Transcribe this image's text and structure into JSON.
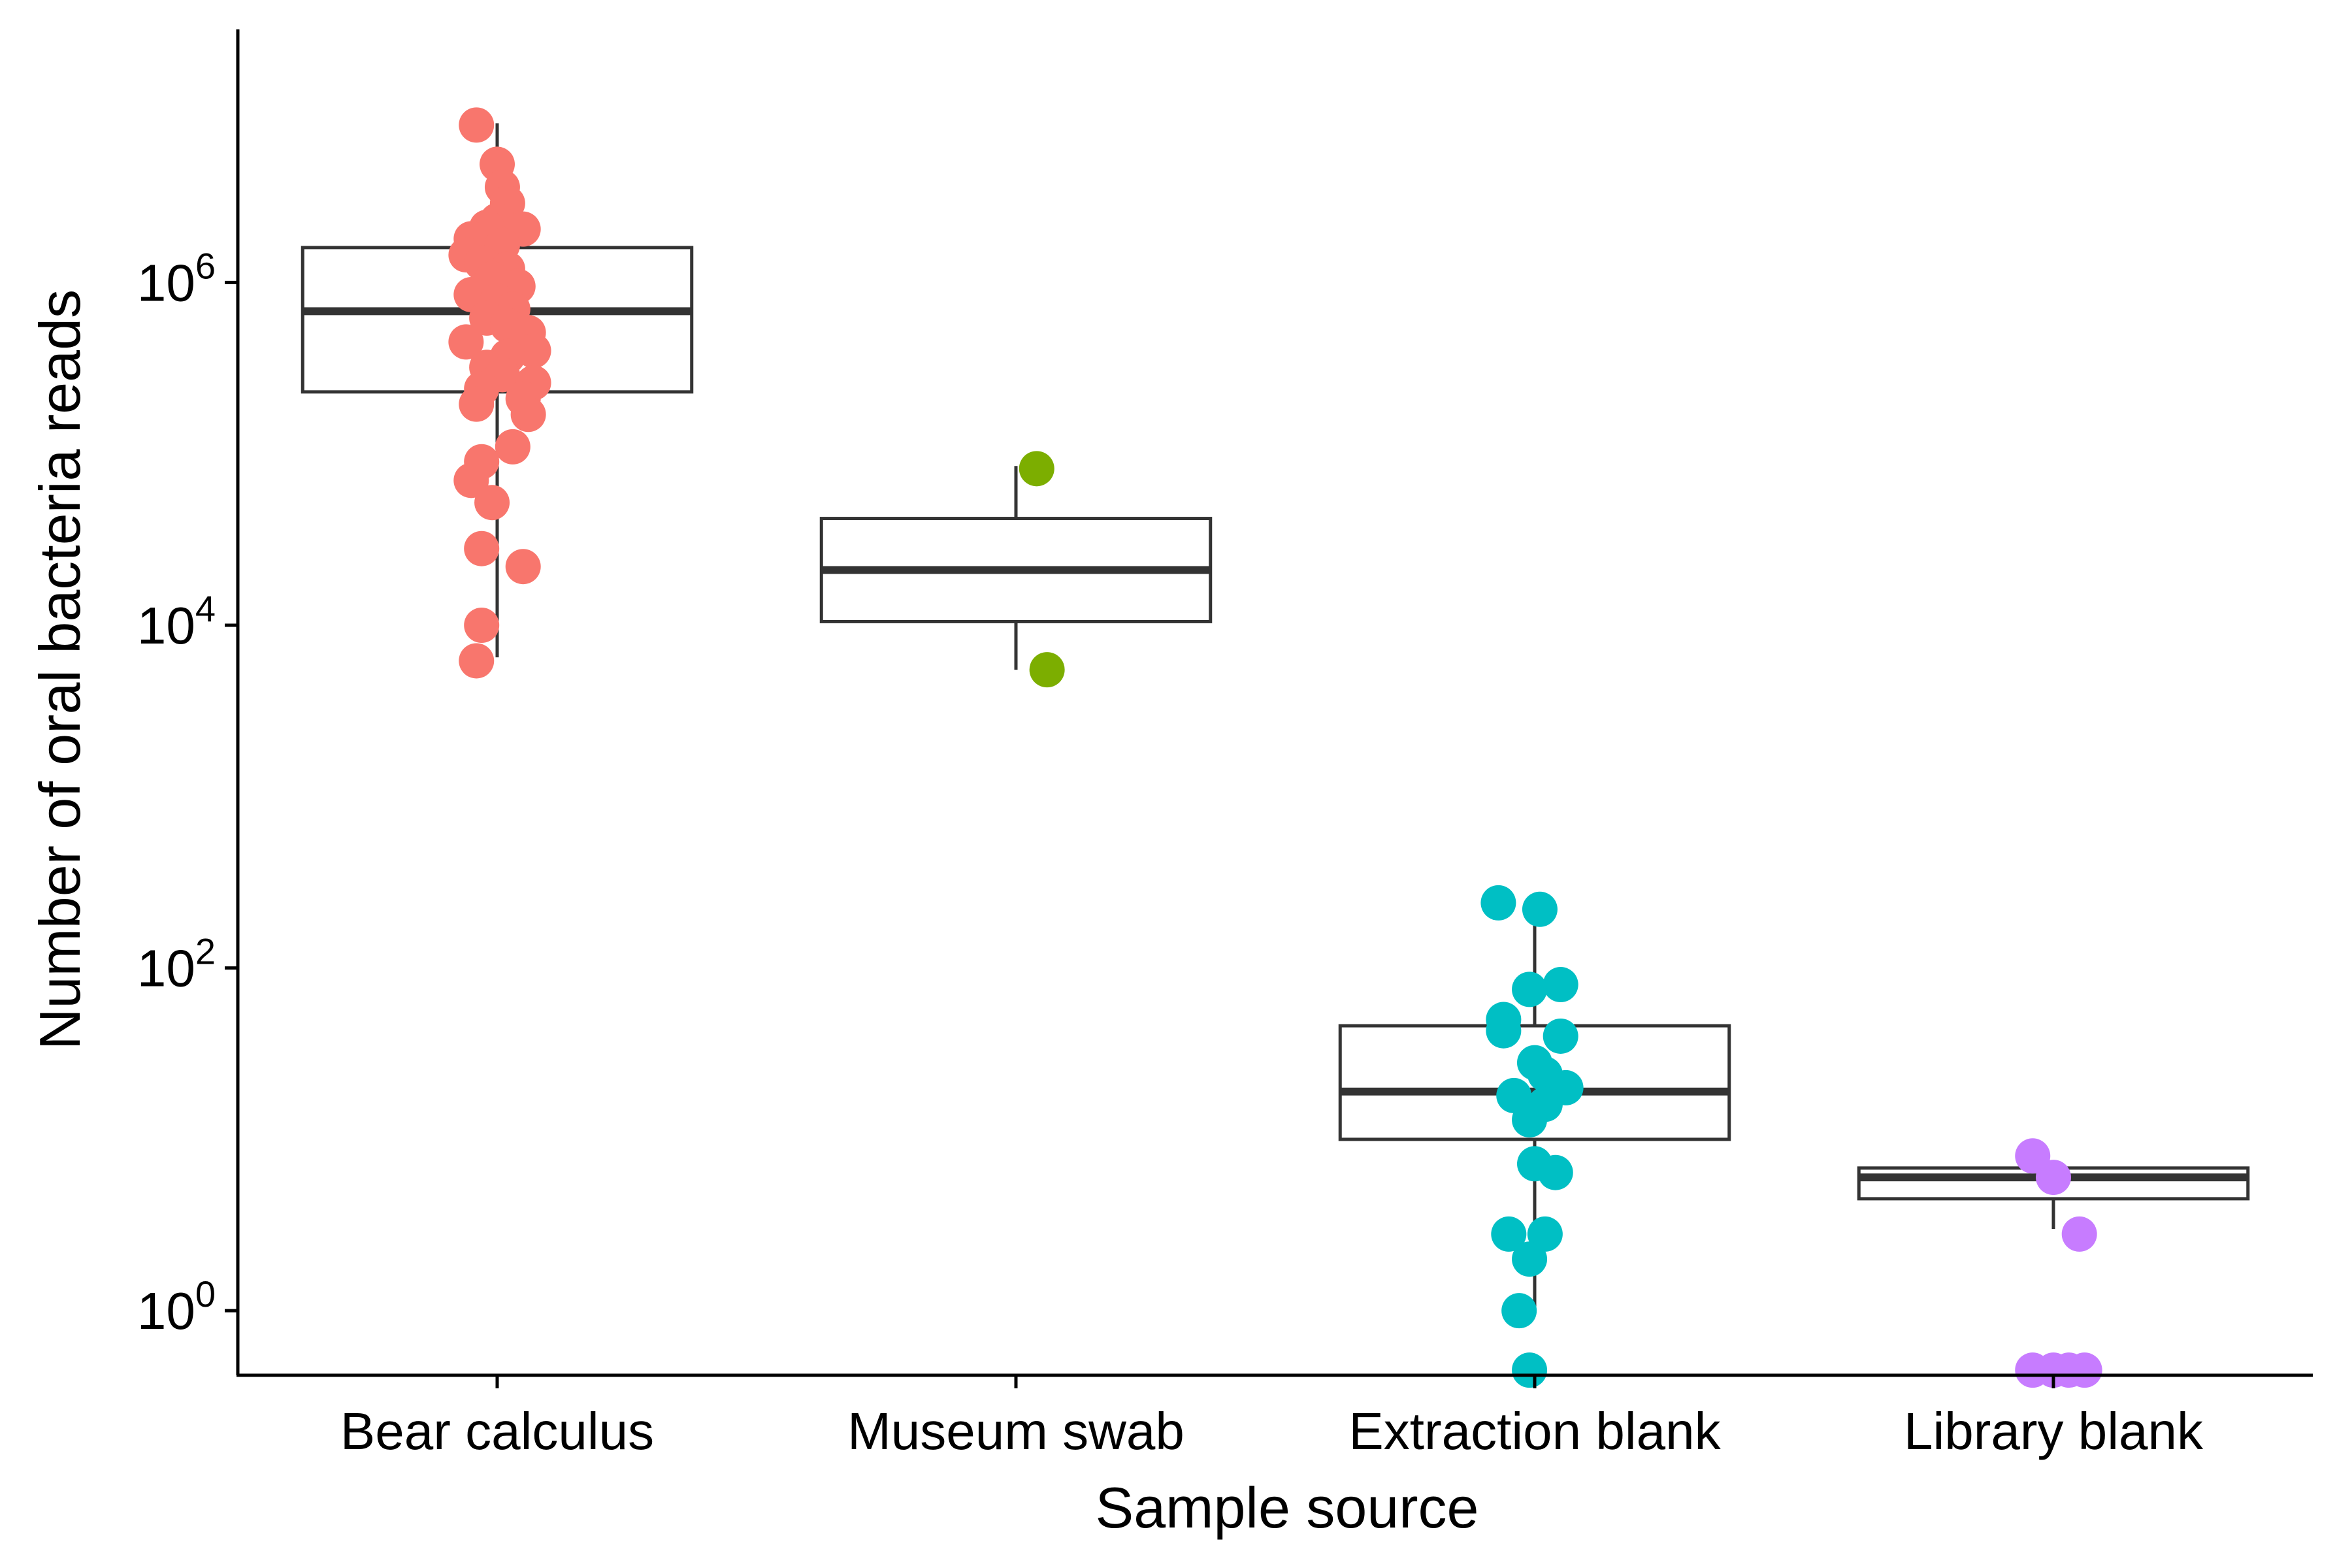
{
  "chart_data": {
    "type": "boxplot",
    "title": "",
    "xlabel": "Sample source",
    "ylabel": "Number of oral bacteria reads",
    "y_scale": "log10",
    "ylim": [
      0.42,
      30000000.0
    ],
    "y_ticks": [
      {
        "value": 1,
        "base": "10",
        "exp": "0"
      },
      {
        "value": 100,
        "base": "10",
        "exp": "2"
      },
      {
        "value": 10000,
        "base": "10",
        "exp": "4"
      },
      {
        "value": 1000000,
        "base": "10",
        "exp": "6"
      }
    ],
    "grid": false,
    "legend": "none",
    "categories": [
      "Bear calculus",
      "Museum swab",
      "Extraction blank",
      "Library blank"
    ],
    "colors": [
      "#F8766D",
      "#7CAE00",
      "#00BFC4",
      "#C77CFF"
    ],
    "box_stroke": "#333333",
    "boxes": [
      {
        "category": "Bear calculus",
        "lower_whisker": 6500,
        "q1": 230000,
        "median": 680000,
        "q3": 1600000,
        "upper_whisker": 8500000
      },
      {
        "category": "Museum swab",
        "lower_whisker": 5500,
        "q1": 10500,
        "median": 21000,
        "q3": 42000,
        "upper_whisker": 85000
      },
      {
        "category": "Extraction blank",
        "lower_whisker": 1.0,
        "q1": 10,
        "median": 19,
        "q3": 46,
        "upper_whisker": 230
      },
      {
        "category": "Library blank",
        "lower_whisker": 3.0,
        "q1": 4.5,
        "median": 6.0,
        "q3": 6.8,
        "upper_whisker": 6.8
      }
    ],
    "points": [
      {
        "category": "Bear calculus",
        "jitter": -0.04,
        "y": 8300000
      },
      {
        "category": "Bear calculus",
        "jitter": 0.0,
        "y": 4900000
      },
      {
        "category": "Bear calculus",
        "jitter": 0.01,
        "y": 3600000
      },
      {
        "category": "Bear calculus",
        "jitter": 0.02,
        "y": 2900000
      },
      {
        "category": "Bear calculus",
        "jitter": 0.0,
        "y": 2300000
      },
      {
        "category": "Bear calculus",
        "jitter": -0.02,
        "y": 2100000
      },
      {
        "category": "Bear calculus",
        "jitter": 0.05,
        "y": 2050000
      },
      {
        "category": "Bear calculus",
        "jitter": -0.05,
        "y": 1800000
      },
      {
        "category": "Bear calculus",
        "jitter": 0.01,
        "y": 1650000
      },
      {
        "category": "Bear calculus",
        "jitter": -0.06,
        "y": 1450000
      },
      {
        "category": "Bear calculus",
        "jitter": -0.03,
        "y": 1300000
      },
      {
        "category": "Bear calculus",
        "jitter": 0.02,
        "y": 1200000
      },
      {
        "category": "Bear calculus",
        "jitter": -0.01,
        "y": 1050000
      },
      {
        "category": "Bear calculus",
        "jitter": 0.04,
        "y": 950000
      },
      {
        "category": "Bear calculus",
        "jitter": -0.05,
        "y": 850000
      },
      {
        "category": "Bear calculus",
        "jitter": 0.0,
        "y": 780000
      },
      {
        "category": "Bear calculus",
        "jitter": 0.03,
        "y": 700000
      },
      {
        "category": "Bear calculus",
        "jitter": -0.02,
        "y": 620000
      },
      {
        "category": "Bear calculus",
        "jitter": 0.02,
        "y": 560000
      },
      {
        "category": "Bear calculus",
        "jitter": 0.06,
        "y": 510000
      },
      {
        "category": "Bear calculus",
        "jitter": -0.06,
        "y": 450000
      },
      {
        "category": "Bear calculus",
        "jitter": 0.07,
        "y": 400000
      },
      {
        "category": "Bear calculus",
        "jitter": 0.02,
        "y": 370000
      },
      {
        "category": "Bear calculus",
        "jitter": -0.02,
        "y": 320000
      },
      {
        "category": "Bear calculus",
        "jitter": 0.01,
        "y": 290000
      },
      {
        "category": "Bear calculus",
        "jitter": 0.07,
        "y": 260000
      },
      {
        "category": "Bear calculus",
        "jitter": -0.03,
        "y": 240000
      },
      {
        "category": "Bear calculus",
        "jitter": 0.05,
        "y": 210000
      },
      {
        "category": "Bear calculus",
        "jitter": -0.04,
        "y": 195000
      },
      {
        "category": "Bear calculus",
        "jitter": 0.06,
        "y": 170000
      },
      {
        "category": "Bear calculus",
        "jitter": 0.03,
        "y": 110000
      },
      {
        "category": "Bear calculus",
        "jitter": -0.03,
        "y": 90000
      },
      {
        "category": "Bear calculus",
        "jitter": -0.05,
        "y": 70000
      },
      {
        "category": "Bear calculus",
        "jitter": -0.01,
        "y": 52000
      },
      {
        "category": "Bear calculus",
        "jitter": -0.03,
        "y": 28000
      },
      {
        "category": "Bear calculus",
        "jitter": 0.05,
        "y": 22000
      },
      {
        "category": "Bear calculus",
        "jitter": -0.03,
        "y": 10000
      },
      {
        "category": "Bear calculus",
        "jitter": -0.04,
        "y": 6200
      },
      {
        "category": "Museum swab",
        "jitter": 0.04,
        "y": 82000
      },
      {
        "category": "Museum swab",
        "jitter": 0.06,
        "y": 5500
      },
      {
        "category": "Extraction blank",
        "jitter": -0.07,
        "y": 240
      },
      {
        "category": "Extraction blank",
        "jitter": 0.01,
        "y": 220
      },
      {
        "category": "Extraction blank",
        "jitter": 0.05,
        "y": 80
      },
      {
        "category": "Extraction blank",
        "jitter": -0.01,
        "y": 75
      },
      {
        "category": "Extraction blank",
        "jitter": -0.06,
        "y": 50
      },
      {
        "category": "Extraction blank",
        "jitter": -0.06,
        "y": 43
      },
      {
        "category": "Extraction blank",
        "jitter": 0.05,
        "y": 40
      },
      {
        "category": "Extraction blank",
        "jitter": 0.0,
        "y": 28
      },
      {
        "category": "Extraction blank",
        "jitter": 0.02,
        "y": 24
      },
      {
        "category": "Extraction blank",
        "jitter": 0.06,
        "y": 20
      },
      {
        "category": "Extraction blank",
        "jitter": -0.04,
        "y": 18
      },
      {
        "category": "Extraction blank",
        "jitter": 0.02,
        "y": 16
      },
      {
        "category": "Extraction blank",
        "jitter": -0.01,
        "y": 13
      },
      {
        "category": "Extraction blank",
        "jitter": 0.0,
        "y": 7.2
      },
      {
        "category": "Extraction blank",
        "jitter": 0.04,
        "y": 6.4
      },
      {
        "category": "Extraction blank",
        "jitter": -0.05,
        "y": 2.8
      },
      {
        "category": "Extraction blank",
        "jitter": 0.02,
        "y": 2.8
      },
      {
        "category": "Extraction blank",
        "jitter": -0.01,
        "y": 2.0
      },
      {
        "category": "Extraction blank",
        "jitter": -0.03,
        "y": 1.0
      },
      {
        "category": "Extraction blank",
        "jitter": -0.01,
        "y": 0.45
      },
      {
        "category": "Library blank",
        "jitter": -0.04,
        "y": 8.0
      },
      {
        "category": "Library blank",
        "jitter": 0.0,
        "y": 6.0
      },
      {
        "category": "Library blank",
        "jitter": 0.05,
        "y": 2.8
      },
      {
        "category": "Library blank",
        "jitter": -0.04,
        "y": 0.45
      },
      {
        "category": "Library blank",
        "jitter": 0.0,
        "y": 0.45
      },
      {
        "category": "Library blank",
        "jitter": 0.03,
        "y": 0.45
      },
      {
        "category": "Library blank",
        "jitter": 0.06,
        "y": 0.45
      }
    ]
  }
}
